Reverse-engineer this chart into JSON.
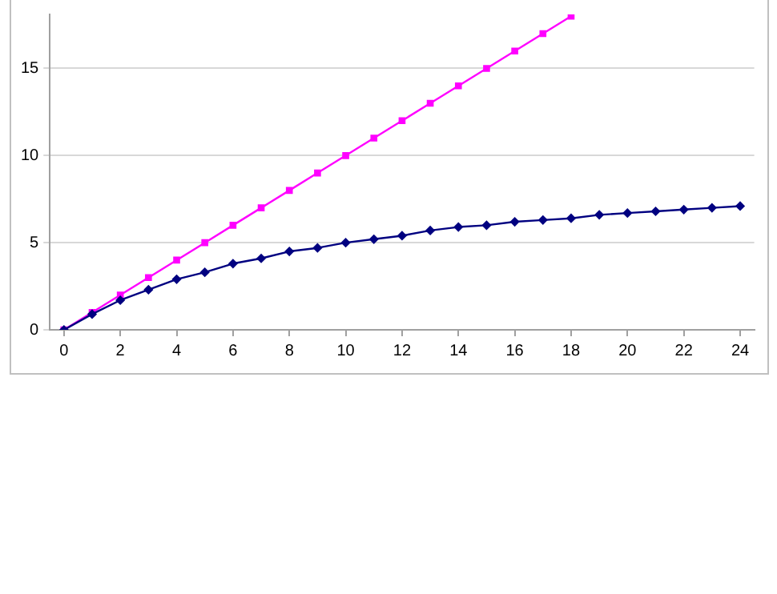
{
  "chart_data": {
    "type": "line",
    "x": [
      0,
      1,
      2,
      3,
      4,
      5,
      6,
      7,
      8,
      9,
      10,
      11,
      12,
      13,
      14,
      15,
      16,
      17,
      18,
      19,
      20,
      21,
      22,
      23,
      24
    ],
    "series": [
      {
        "color": "#ff00ff",
        "marker": "square",
        "values": [
          0,
          1,
          2,
          3,
          4,
          5,
          6,
          7,
          8,
          9,
          10,
          11,
          12,
          13,
          14,
          15,
          16,
          17,
          18,
          null,
          null,
          null,
          null,
          null,
          null
        ]
      },
      {
        "color": "#000080",
        "marker": "diamond",
        "values": [
          0,
          0.9,
          1.7,
          2.3,
          2.9,
          3.3,
          3.8,
          4.1,
          4.5,
          4.7,
          5.0,
          5.2,
          5.4,
          5.7,
          5.9,
          6.0,
          6.2,
          6.3,
          6.4,
          6.6,
          6.7,
          6.8,
          6.9,
          7.0,
          7.1
        ]
      }
    ],
    "xlim": [
      -0.5,
      24.5
    ],
    "xticks": [
      0,
      2,
      4,
      6,
      8,
      10,
      12,
      14,
      16,
      18,
      20,
      22,
      24
    ],
    "ylim": [
      0,
      18.1
    ],
    "yticks": [
      0,
      5,
      10,
      15
    ],
    "grid": "y",
    "legend": false
  }
}
